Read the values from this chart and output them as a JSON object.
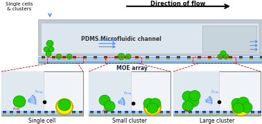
{
  "bg_color": "#ffffff",
  "cell_green": "#22cc00",
  "cell_outline": "#009900",
  "well_yellow": "#ffee00",
  "well_outline": "#ccaa00",
  "arrow_color": "#000000",
  "flow_arrows_color": "#4488ff",
  "force_drag_color": "#4488ff",
  "force_dep_color": "#cc0000",
  "pdms_text": "PDMS Microfluidic channel",
  "moe_text": "MOE array",
  "flow_text": "Direction of flow",
  "label1": "Single cell",
  "label2": "Small cluster",
  "label3": "Large cluster",
  "top_label": "Single cells\n& clusters",
  "figsize": [
    3.78,
    1.79
  ],
  "dpi": 100
}
